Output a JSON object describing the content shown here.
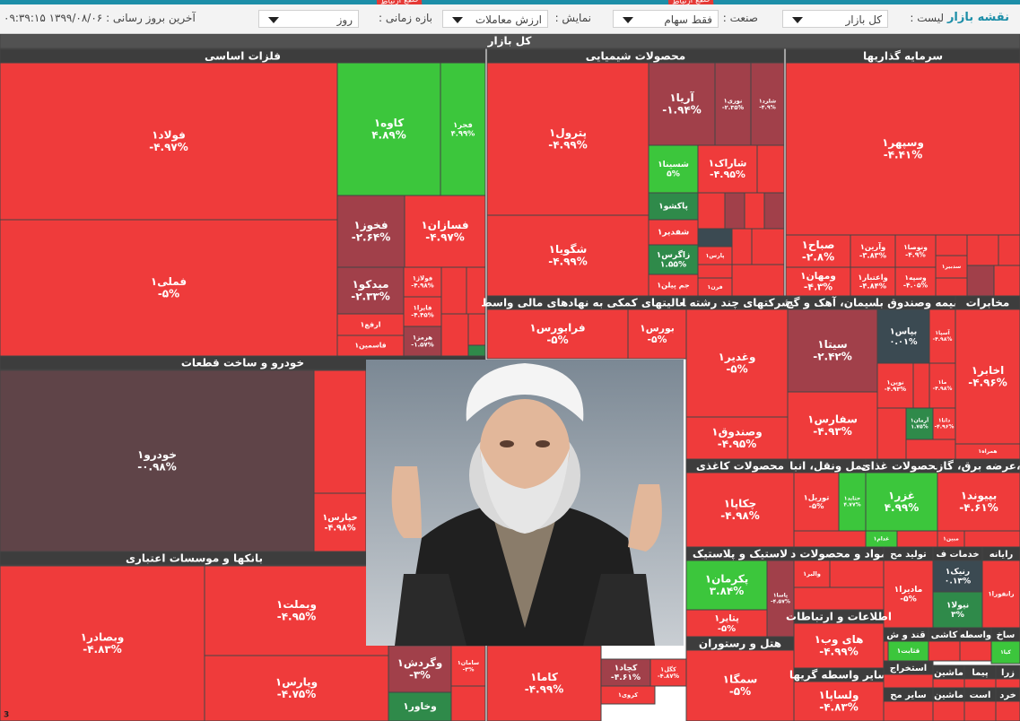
{
  "toolbar": {
    "title": "نقشه بازار",
    "list_label": "لیست :",
    "list_value": "کل بازار",
    "industry_label": "صنعت :",
    "industry_value": "فقط سهام",
    "display_label": "نمایش :",
    "display_value": "ارزش معاملات",
    "period_label": "بازه زمانی :",
    "period_value": "روز",
    "updated": "آخرین بروز رسانی : ۱۳۹۹/۰۸/۰۶ ۰۹:۳۹:۱۵",
    "tags": [
      "قطع ارتباط",
      "قطع ارتباط"
    ]
  },
  "map": {
    "title": "کل بازار",
    "corner_note": "3",
    "sectors": [
      {
        "name": "فلزات اساسی",
        "cells": [
          {
            "symbol": "فولاد۱",
            "change": "-۴.۹۷%",
            "color": "#ef3b3b"
          },
          {
            "symbol": "فملی۱",
            "change": "-۵%",
            "color": "#ef3b3b"
          },
          {
            "symbol": "کاوه۱",
            "change": "۴.۸۹%",
            "color": "#3cc63c"
          },
          {
            "symbol": "فجر۱",
            "change": "۴.۹۹%",
            "color": "#3cc63c"
          },
          {
            "symbol": "فخوز۱",
            "change": "-۲.۶۴%",
            "color": "#a1404a"
          },
          {
            "symbol": "فسازان۱",
            "change": "-۴.۹۷%",
            "color": "#ef3b3b"
          },
          {
            "symbol": "میدکو۱",
            "change": "-۲.۳۳%",
            "color": "#a1404a"
          },
          {
            "symbol": "فولاژ۱",
            "change": "-۴.۹۸%",
            "color": "#ef3b3b"
          },
          {
            "symbol": "فایرا۱",
            "change": "-۴.۴۵%",
            "color": "#ef3b3b"
          },
          {
            "symbol": "هرمز۱",
            "change": "-۱.۵۷%",
            "color": "#a1404a"
          },
          {
            "symbol": "ارفع۱",
            "color": "#ef3b3b"
          },
          {
            "symbol": "فاسمین۱",
            "color": "#ef3b3b"
          }
        ]
      },
      {
        "name": "محصولات شیمیایی",
        "cells": [
          {
            "symbol": "پترول۱",
            "change": "-۴.۹۹%",
            "color": "#ef3b3b"
          },
          {
            "symbol": "شگویا۱",
            "change": "-۴.۹۹%",
            "color": "#ef3b3b"
          },
          {
            "symbol": "آریا۱",
            "change": "-۱.۹۴%",
            "color": "#a1404a"
          },
          {
            "symbol": "نوری۱",
            "change": "-۲.۳۵%",
            "color": "#a1404a"
          },
          {
            "symbol": "شلرد۱",
            "change": "-۴.۹%",
            "color": "#a1404a"
          },
          {
            "symbol": "شسینا۱",
            "change": "۵%",
            "color": "#3cc63c"
          },
          {
            "symbol": "شاراک۱",
            "change": "-۴.۹۵%",
            "color": "#ef3b3b"
          },
          {
            "symbol": "پاکشو۱",
            "color": "#2f8a4a"
          },
          {
            "symbol": "شفدیر۱",
            "color": "#ef3b3b"
          },
          {
            "symbol": "زاگرس۱",
            "change": "۱.۵۵%",
            "color": "#2f8a4a"
          },
          {
            "symbol": "جم پیلن۱",
            "color": "#ef3b3b"
          },
          {
            "symbol": "پارس۱",
            "color": "#ef3b3b"
          },
          {
            "symbol": "فرن۱",
            "color": "#ef3b3b"
          }
        ]
      },
      {
        "name": "سرمایه گذاریها",
        "cells": [
          {
            "symbol": "وسپهر۱",
            "change": "-۴.۴۱%",
            "color": "#ef3b3b"
          },
          {
            "symbol": "صباح۱",
            "change": "-۲.۸%",
            "color": "#ef3b3b"
          },
          {
            "symbol": "وآرین۱",
            "change": "-۳.۸۳%",
            "color": "#ef3b3b"
          },
          {
            "symbol": "ونوصا۱",
            "change": "-۴.۹%",
            "color": "#ef3b3b"
          },
          {
            "symbol": "سدبیر۱",
            "color": "#ef3b3b"
          },
          {
            "symbol": "ومهان۱",
            "change": "-۴.۳%",
            "color": "#ef3b3b"
          },
          {
            "symbol": "واعتبار۱",
            "change": "-۴.۸۴%",
            "color": "#ef3b3b"
          },
          {
            "symbol": "وسپه۱",
            "change": "-۴.۰۵%",
            "color": "#ef3b3b"
          }
        ]
      },
      {
        "name": "خودرو و ساخت قطعات",
        "cells": [
          {
            "symbol": "خودرو۱",
            "change": "-۰.۹۸%",
            "color": "#5f4448"
          },
          {
            "symbol": "خپارس۱",
            "change": "-۴.۹۸%",
            "color": "#ef3b3b"
          }
        ]
      },
      {
        "name": "بانکها و موسسات اعتباری",
        "cells": [
          {
            "symbol": "وبصادر۱",
            "change": "-۴.۸۳%",
            "color": "#ef3b3b"
          },
          {
            "symbol": "وبملت۱",
            "change": "-۴.۹۵%",
            "color": "#ef3b3b"
          },
          {
            "symbol": "وپارس۱",
            "change": "-۴.۷۵%",
            "color": "#ef3b3b"
          },
          {
            "symbol": "وگردش۱",
            "change": "-۳%",
            "color": "#a1404a"
          },
          {
            "symbol": "وخاور۱",
            "color": "#2f8a4a"
          },
          {
            "symbol": "سامان۱",
            "change": "-۳%",
            "color": "#ef3b3b"
          }
        ]
      },
      {
        "name": "فعالیتهای کمکی به نهادهای مالی واسط",
        "cells": [
          {
            "symbol": "فرابورس۱",
            "change": "-۵%",
            "color": "#ef3b3b"
          },
          {
            "symbol": "بورس۱",
            "change": "-۵%",
            "color": "#ef3b3b"
          }
        ]
      },
      {
        "name": "شرکتهای چند رشته ا",
        "cells": [
          {
            "symbol": "وغدیر۱",
            "change": "-۵%",
            "color": "#ef3b3b"
          },
          {
            "symbol": "وصندوق۱",
            "change": "-۴.۹۵%",
            "color": "#ef3b3b"
          }
        ]
      },
      {
        "name": "سیمان، آهک و گچ",
        "cells": [
          {
            "symbol": "سیتا۱",
            "change": "-۲.۴۲%",
            "color": "#a1404a"
          },
          {
            "symbol": "سفارس۱",
            "change": "-۴.۹۳%",
            "color": "#ef3b3b"
          }
        ]
      },
      {
        "name": "بیمه وصندوق با",
        "cells": [
          {
            "symbol": "بپاس۱",
            "change": "۰.۰۱%",
            "color": "#3b4a52"
          },
          {
            "symbol": "آسپا۱",
            "change": "-۴.۹۸%",
            "color": "#ef3b3b"
          },
          {
            "symbol": "نوین۱",
            "change": "-۴.۹۳%",
            "color": "#ef3b3b"
          },
          {
            "symbol": "ما۱",
            "change": "-۴.۹۸%",
            "color": "#ef3b3b"
          },
          {
            "symbol": "آرمان۱",
            "change": "۱.۷۵%",
            "color": "#2f8a4a"
          },
          {
            "symbol": "دانا۱",
            "change": "-۴.۹۶%",
            "color": "#ef3b3b"
          }
        ]
      },
      {
        "name": "مخابرات",
        "cells": [
          {
            "symbol": "اخابر۱",
            "change": "-۴.۹۶%",
            "color": "#ef3b3b"
          },
          {
            "symbol": "همراه۱",
            "color": "#ef3b3b"
          }
        ]
      },
      {
        "name": "محصولات کاغذی",
        "cells": [
          {
            "symbol": "چکاپا۱",
            "change": "-۴.۹۸%",
            "color": "#ef3b3b"
          }
        ]
      },
      {
        "name": "حمل ونقل، انبا",
        "cells": [
          {
            "symbol": "توریل۱",
            "change": "-۵%",
            "color": "#ef3b3b"
          },
          {
            "symbol": "حتاید۱",
            "change": "۴.۷۷%",
            "color": "#3cc63c"
          }
        ]
      },
      {
        "name": "محصولات غذای",
        "cells": [
          {
            "symbol": "غزر۱",
            "change": "۴.۹۹%",
            "color": "#3cc63c"
          },
          {
            "symbol": "غدام۱",
            "color": "#3cc63c"
          }
        ]
      },
      {
        "name": "عرضه برق، گاز،",
        "cells": [
          {
            "symbol": "بپیوند۱",
            "change": "-۴.۶۱%",
            "color": "#ef3b3b"
          },
          {
            "symbol": "مبین۱",
            "color": "#ef3b3b"
          }
        ]
      },
      {
        "name": "لاستیک و پلاستیک",
        "cells": [
          {
            "symbol": "پکرمان۱",
            "change": "۳.۸۴%",
            "color": "#3cc63c"
          },
          {
            "symbol": "پاسا۱",
            "change": "-۴.۵۷%",
            "color": "#a1404a"
          },
          {
            "symbol": "پتایر۱",
            "change": "-۵%",
            "color": "#ef3b3b"
          }
        ]
      },
      {
        "name": "مواد و محصولات د",
        "cells": [
          {
            "symbol": "والبر۱",
            "color": "#ef3b3b"
          }
        ]
      },
      {
        "name": "تولید مح",
        "cells": [
          {
            "symbol": "مادیرا۱",
            "change": "-۵%",
            "color": "#ef3b3b"
          }
        ]
      },
      {
        "name": "خدمات ف",
        "cells": [
          {
            "symbol": "رنیک۱",
            "change": "۰.۱۳%",
            "color": "#3b4a52"
          },
          {
            "symbol": "نیولا۱",
            "change": "۳%",
            "color": "#2f8a4a"
          }
        ]
      },
      {
        "name": "رایانه",
        "cells": [
          {
            "symbol": "رانفورا۱",
            "color": "#ef3b3b"
          }
        ]
      },
      {
        "name": "اطلاعات و ارتباطات",
        "cells": [
          {
            "symbol": "های وب۱",
            "change": "-۴.۹۹%",
            "color": "#ef3b3b"
          }
        ]
      },
      {
        "name": "هتل و رستوران",
        "cells": [
          {
            "symbol": "سمگا۱",
            "change": "-۵%",
            "color": "#ef3b3b"
          }
        ]
      },
      {
        "name": "ساير واسطه گريها",
        "cells": [
          {
            "symbol": "ولساپا۱",
            "change": "-۴.۸۳%",
            "color": "#ef3b3b"
          }
        ]
      },
      {
        "name": "قند و ش",
        "cells": [
          {
            "symbol": "قثابت۱",
            "color": "#3cc63c"
          }
        ]
      },
      {
        "name": "کاشی",
        "cells": []
      },
      {
        "name": "واسطه",
        "cells": []
      },
      {
        "name": "ساخ",
        "cells": [
          {
            "symbol": "کیا۱",
            "color": "#3cc63c"
          }
        ]
      },
      {
        "name": "استخراج",
        "cells": []
      },
      {
        "name": "ماشین",
        "cells": []
      },
      {
        "name": "پیما",
        "cells": []
      },
      {
        "name": "زرا",
        "cells": []
      },
      {
        "name": "سایر مح",
        "cells": []
      },
      {
        "name": "ماشین",
        "cells": []
      },
      {
        "name": "است",
        "cells": []
      },
      {
        "name": "خرد",
        "cells": []
      }
    ],
    "other_cells": [
      {
        "symbol": "کاما۱",
        "change": "-۴.۹۹%",
        "color": "#ef3b3b"
      },
      {
        "symbol": "کچاد۱",
        "change": "-۴.۶۱%",
        "color": "#a1404a"
      },
      {
        "symbol": "کگل۱",
        "change": "-۴.۸۷%",
        "color": "#ef3b3b"
      },
      {
        "symbol": "کروی۱",
        "color": "#ef3b3b"
      }
    ]
  }
}
